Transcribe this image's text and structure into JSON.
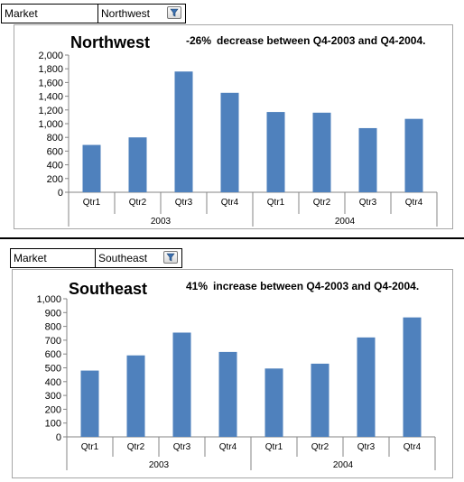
{
  "charts": [
    {
      "filter": {
        "label": "Market",
        "value": "Northwest"
      },
      "chart_data": {
        "type": "bar",
        "title": "Northwest",
        "annotation": {
          "pct": "-26%",
          "text": "decrease between Q4-2003 and Q4-2004."
        },
        "categories": [
          "Qtr1",
          "Qtr2",
          "Qtr3",
          "Qtr4",
          "Qtr1",
          "Qtr2",
          "Qtr3",
          "Qtr4"
        ],
        "groups": [
          {
            "label": "2003",
            "count": 4
          },
          {
            "label": "2004",
            "count": 4
          }
        ],
        "values": [
          690,
          800,
          1760,
          1450,
          1170,
          1160,
          935,
          1070
        ],
        "ylim": [
          0,
          2000
        ],
        "yticks": [
          "0",
          "200",
          "400",
          "600",
          "800",
          "1,000",
          "1,200",
          "1,400",
          "1,600",
          "1,800",
          "2,000"
        ],
        "bar_color": "#4f81bd",
        "grid": false
      }
    },
    {
      "filter": {
        "label": "Market",
        "value": "Southeast"
      },
      "chart_data": {
        "type": "bar",
        "title": "Southeast",
        "annotation": {
          "pct": "41%",
          "text": "increase between Q4-2003 and Q4-2004."
        },
        "categories": [
          "Qtr1",
          "Qtr2",
          "Qtr3",
          "Qtr4",
          "Qtr1",
          "Qtr2",
          "Qtr3",
          "Qtr4"
        ],
        "groups": [
          {
            "label": "2003",
            "count": 4
          },
          {
            "label": "2004",
            "count": 4
          }
        ],
        "values": [
          480,
          590,
          755,
          615,
          495,
          530,
          720,
          865
        ],
        "ylim": [
          0,
          1000
        ],
        "yticks": [
          "0",
          "100",
          "200",
          "300",
          "400",
          "500",
          "600",
          "700",
          "800",
          "900",
          "1,000"
        ],
        "bar_color": "#4f81bd",
        "grid": false
      }
    }
  ]
}
